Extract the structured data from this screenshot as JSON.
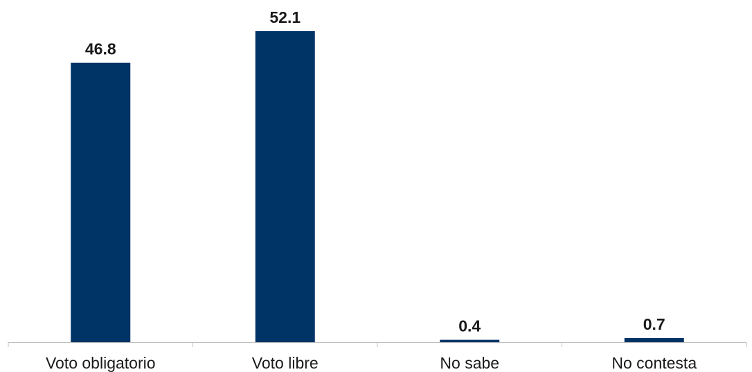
{
  "chart_data": {
    "type": "bar",
    "categories": [
      "Voto obligatorio",
      "Voto libre",
      "No sabe",
      "No contesta"
    ],
    "values": [
      46.8,
      52.1,
      0.4,
      0.7
    ],
    "value_labels": [
      "46.8",
      "52.1",
      "0.4",
      "0.7"
    ],
    "title": "",
    "xlabel": "",
    "ylabel": "",
    "ylim": [
      0,
      52.1
    ],
    "grid": false,
    "legend": "none",
    "bar_color": "#003366",
    "axis_color": "#bfbfbf"
  }
}
